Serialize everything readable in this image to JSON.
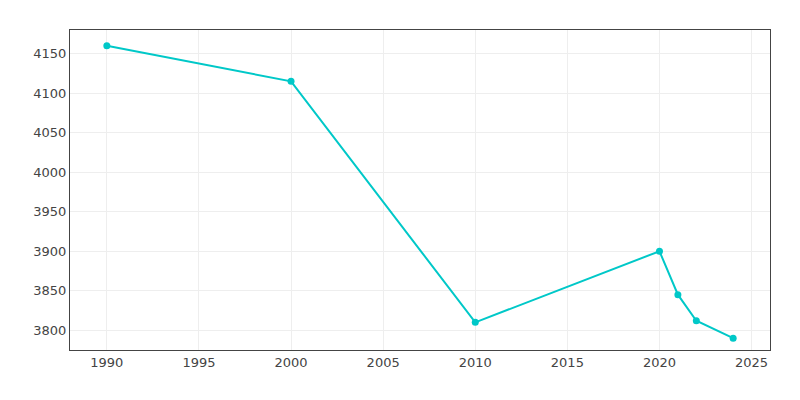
{
  "chart_data": {
    "type": "line",
    "x": [
      1990,
      2000,
      2010,
      2020,
      2021,
      2022,
      2024
    ],
    "values": [
      4160,
      4115,
      3810,
      3900,
      3845,
      3812,
      3790
    ],
    "color": "#00c8c8",
    "marker": "circle",
    "xlim": [
      1988,
      2026
    ],
    "ylim": [
      3775,
      4180
    ],
    "xticks": [
      1990,
      1995,
      2000,
      2005,
      2010,
      2015,
      2020,
      2025
    ],
    "yticks": [
      3800,
      3850,
      3900,
      3950,
      4000,
      4050,
      4100,
      4150
    ],
    "grid": true
  }
}
